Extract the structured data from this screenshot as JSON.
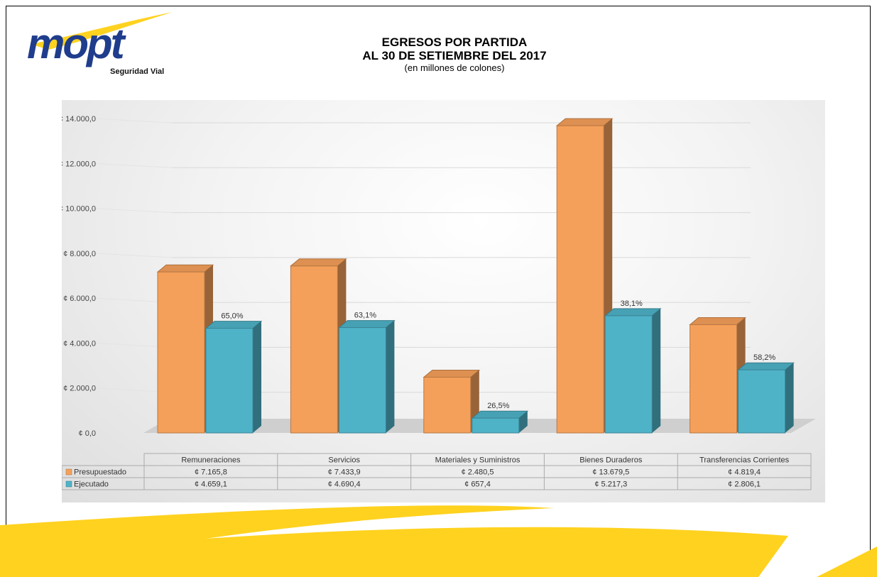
{
  "header": {
    "logo_text": "mopt",
    "logo_subtext": "Seguridad Vial",
    "title_line1": "EGRESOS POR PARTIDA",
    "title_line2": "AL 30 DE SETIEMBRE DEL 2017",
    "subtitle": "(en millones de colones)"
  },
  "colors": {
    "presupuestado": "#f5a05a",
    "ejecutado": "#4fb3c8",
    "brand_yellow": "#ffd21f"
  },
  "chart_data": {
    "type": "bar",
    "style": "3d-column",
    "title": "EGRESOS POR PARTIDA AL 30 DE SETIEMBRE DEL 2017",
    "subtitle": "(en millones de colones)",
    "categories": [
      "Remuneraciones",
      "Servicios",
      "Materiales y Suministros",
      "Bienes Duraderos",
      "Transferencias Corrientes"
    ],
    "series": [
      {
        "name": "Presupuestado",
        "values": [
          7165.8,
          7433.9,
          2480.5,
          13679.5,
          4819.4
        ],
        "labels": [
          "¢ 7.165,8",
          "¢ 7.433,9",
          "¢ 2.480,5",
          "¢ 13.679,5",
          "¢ 4.819,4"
        ]
      },
      {
        "name": "Ejecutado",
        "values": [
          4659.1,
          4690.4,
          657.4,
          5217.3,
          2806.1
        ],
        "labels": [
          "¢ 4.659,1",
          "¢ 4.690,4",
          "¢ 657,4",
          "¢ 5.217,3",
          "¢ 2.806,1"
        ]
      }
    ],
    "execution_pct": [
      "65,0%",
      "63,1%",
      "26,5%",
      "38,1%",
      "58,2%"
    ],
    "yticks": [
      "¢ 0,0",
      "¢ 2.000,0",
      "¢ 4.000,0",
      "¢ 6.000,0",
      "¢ 8.000,0",
      "¢ 10.000,0",
      "¢ 12.000,0",
      "¢ 14.000,0"
    ],
    "ylim": [
      0,
      14000
    ],
    "grid": true,
    "legend": "data-table"
  }
}
